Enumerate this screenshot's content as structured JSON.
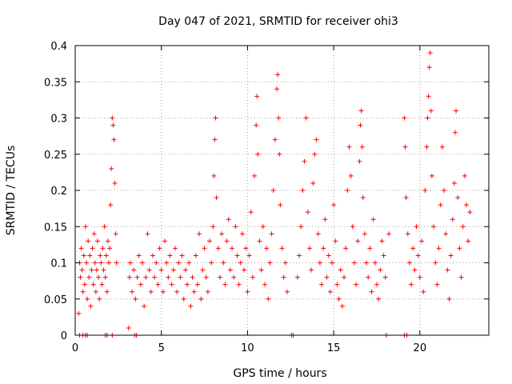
{
  "chart_data": {
    "type": "scatter",
    "title": "Day 047 of 2021, SRMTID for receiver ohi3",
    "xlabel": "GPS time / hours",
    "ylabel": "SRMTID / TECUs",
    "xlim": [
      0,
      24
    ],
    "ylim": [
      0,
      0.4
    ],
    "grid": true,
    "marker": "plus",
    "color": "#ff0000",
    "xticks": [
      0,
      5,
      10,
      15,
      20
    ],
    "yticks": [
      0,
      0.05,
      0.1,
      0.15,
      0.2,
      0.25,
      0.3,
      0.35,
      0.4
    ],
    "ytick_labels": [
      "0",
      "0.05",
      "0.1",
      "0.15",
      "0.2",
      "0.25",
      "0.3",
      "0.35",
      "0.4"
    ],
    "series": [
      {
        "name": "SRMTID",
        "points": [
          [
            0.2,
            0.03
          ],
          [
            0.25,
            0.1
          ],
          [
            0.3,
            0.08
          ],
          [
            0.35,
            0.12
          ],
          [
            0.4,
            0.09
          ],
          [
            0.45,
            0.06
          ],
          [
            0.5,
            0.11
          ],
          [
            0.55,
            0.07
          ],
          [
            0.6,
            0.15
          ],
          [
            0.65,
            0.1
          ],
          [
            0.7,
            0.05
          ],
          [
            0.75,
            0.13
          ],
          [
            0.8,
            0.08
          ],
          [
            0.85,
            0.11
          ],
          [
            0.9,
            0.04
          ],
          [
            0.95,
            0.09
          ],
          [
            1.0,
            0.12
          ],
          [
            1.05,
            0.07
          ],
          [
            1.1,
            0.14
          ],
          [
            1.15,
            0.1
          ],
          [
            1.2,
            0.06
          ],
          [
            1.25,
            0.09
          ],
          [
            1.3,
            0.13
          ],
          [
            1.35,
            0.08
          ],
          [
            1.4,
            0.05
          ],
          [
            1.45,
            0.11
          ],
          [
            1.5,
            0.1
          ],
          [
            1.55,
            0.07
          ],
          [
            1.6,
            0.12
          ],
          [
            1.65,
            0.09
          ],
          [
            1.7,
            0.15
          ],
          [
            1.75,
            0.08
          ],
          [
            1.8,
            0.11
          ],
          [
            1.85,
            0.06
          ],
          [
            1.9,
            0.13
          ],
          [
            1.95,
            0.1
          ],
          [
            2.0,
            0.12
          ],
          [
            2.05,
            0.18
          ],
          [
            2.1,
            0.23
          ],
          [
            2.15,
            0.3
          ],
          [
            2.2,
            0.29
          ],
          [
            2.25,
            0.27
          ],
          [
            2.3,
            0.21
          ],
          [
            2.35,
            0.14
          ],
          [
            2.4,
            0.1
          ],
          [
            3.1,
            0.01
          ],
          [
            3.15,
            0.08
          ],
          [
            3.2,
            0.1
          ],
          [
            3.3,
            0.06
          ],
          [
            3.4,
            0.09
          ],
          [
            3.5,
            0.05
          ],
          [
            3.6,
            0.08
          ],
          [
            3.7,
            0.11
          ],
          [
            3.8,
            0.07
          ],
          [
            3.9,
            0.1
          ],
          [
            4.0,
            0.04
          ],
          [
            4.1,
            0.08
          ],
          [
            4.2,
            0.14
          ],
          [
            4.3,
            0.09
          ],
          [
            4.4,
            0.06
          ],
          [
            4.5,
            0.11
          ],
          [
            4.6,
            0.08
          ],
          [
            4.7,
            0.1
          ],
          [
            4.8,
            0.07
          ],
          [
            4.9,
            0.12
          ],
          [
            5.0,
            0.09
          ],
          [
            5.1,
            0.06
          ],
          [
            5.2,
            0.13
          ],
          [
            5.3,
            0.1
          ],
          [
            5.4,
            0.08
          ],
          [
            5.5,
            0.11
          ],
          [
            5.6,
            0.07
          ],
          [
            5.7,
            0.09
          ],
          [
            5.8,
            0.12
          ],
          [
            5.9,
            0.06
          ],
          [
            6.0,
            0.1
          ],
          [
            6.1,
            0.08
          ],
          [
            6.2,
            0.11
          ],
          [
            6.3,
            0.05
          ],
          [
            6.4,
            0.09
          ],
          [
            6.5,
            0.07
          ],
          [
            6.6,
            0.1
          ],
          [
            6.7,
            0.04
          ],
          [
            6.8,
            0.08
          ],
          [
            6.9,
            0.06
          ],
          [
            7.0,
            0.11
          ],
          [
            7.1,
            0.07
          ],
          [
            7.2,
            0.14
          ],
          [
            7.3,
            0.05
          ],
          [
            7.4,
            0.09
          ],
          [
            7.5,
            0.12
          ],
          [
            7.6,
            0.08
          ],
          [
            7.7,
            0.06
          ],
          [
            7.8,
            0.13
          ],
          [
            7.9,
            0.1
          ],
          [
            8.0,
            0.15
          ],
          [
            8.05,
            0.22
          ],
          [
            8.1,
            0.27
          ],
          [
            8.15,
            0.3
          ],
          [
            8.2,
            0.19
          ],
          [
            8.3,
            0.12
          ],
          [
            8.4,
            0.08
          ],
          [
            8.5,
            0.14
          ],
          [
            8.6,
            0.1
          ],
          [
            8.7,
            0.07
          ],
          [
            8.8,
            0.13
          ],
          [
            8.9,
            0.16
          ],
          [
            9.0,
            0.09
          ],
          [
            9.1,
            0.12
          ],
          [
            9.2,
            0.08
          ],
          [
            9.3,
            0.15
          ],
          [
            9.4,
            0.11
          ],
          [
            9.5,
            0.07
          ],
          [
            9.6,
            0.1
          ],
          [
            9.7,
            0.14
          ],
          [
            9.8,
            0.09
          ],
          [
            9.9,
            0.12
          ],
          [
            10.0,
            0.06
          ],
          [
            10.1,
            0.11
          ],
          [
            10.2,
            0.17
          ],
          [
            10.3,
            0.08
          ],
          [
            10.4,
            0.22
          ],
          [
            10.5,
            0.29
          ],
          [
            10.55,
            0.33
          ],
          [
            10.6,
            0.25
          ],
          [
            10.7,
            0.13
          ],
          [
            10.8,
            0.09
          ],
          [
            10.9,
            0.15
          ],
          [
            11.0,
            0.07
          ],
          [
            11.1,
            0.12
          ],
          [
            11.2,
            0.05
          ],
          [
            11.3,
            0.1
          ],
          [
            11.4,
            0.14
          ],
          [
            11.5,
            0.2
          ],
          [
            11.6,
            0.27
          ],
          [
            11.7,
            0.34
          ],
          [
            11.75,
            0.36
          ],
          [
            11.8,
            0.3
          ],
          [
            11.85,
            0.25
          ],
          [
            11.9,
            0.18
          ],
          [
            12.0,
            0.12
          ],
          [
            12.1,
            0.08
          ],
          [
            12.2,
            0.1
          ],
          [
            12.3,
            0.06
          ],
          [
            12.9,
            0.08
          ],
          [
            13.0,
            0.11
          ],
          [
            13.1,
            0.15
          ],
          [
            13.2,
            0.2
          ],
          [
            13.3,
            0.24
          ],
          [
            13.4,
            0.3
          ],
          [
            13.5,
            0.17
          ],
          [
            13.6,
            0.12
          ],
          [
            13.7,
            0.09
          ],
          [
            13.8,
            0.21
          ],
          [
            13.9,
            0.25
          ],
          [
            14.0,
            0.27
          ],
          [
            14.1,
            0.14
          ],
          [
            14.2,
            0.1
          ],
          [
            14.3,
            0.07
          ],
          [
            14.4,
            0.12
          ],
          [
            14.5,
            0.16
          ],
          [
            14.6,
            0.08
          ],
          [
            14.7,
            0.11
          ],
          [
            14.8,
            0.06
          ],
          [
            14.9,
            0.1
          ],
          [
            15.0,
            0.18
          ],
          [
            15.1,
            0.13
          ],
          [
            15.2,
            0.07
          ],
          [
            15.3,
            0.05
          ],
          [
            15.4,
            0.09
          ],
          [
            15.5,
            0.04
          ],
          [
            15.6,
            0.08
          ],
          [
            15.7,
            0.12
          ],
          [
            15.8,
            0.2
          ],
          [
            15.9,
            0.26
          ],
          [
            16.0,
            0.22
          ],
          [
            16.1,
            0.15
          ],
          [
            16.2,
            0.1
          ],
          [
            16.3,
            0.07
          ],
          [
            16.4,
            0.13
          ],
          [
            16.5,
            0.24
          ],
          [
            16.55,
            0.29
          ],
          [
            16.6,
            0.31
          ],
          [
            16.65,
            0.26
          ],
          [
            16.7,
            0.19
          ],
          [
            16.8,
            0.14
          ],
          [
            16.9,
            0.1
          ],
          [
            17.0,
            0.08
          ],
          [
            17.1,
            0.12
          ],
          [
            17.2,
            0.06
          ],
          [
            17.3,
            0.16
          ],
          [
            17.4,
            0.1
          ],
          [
            17.5,
            0.07
          ],
          [
            17.6,
            0.05
          ],
          [
            17.7,
            0.09
          ],
          [
            17.8,
            0.13
          ],
          [
            17.9,
            0.11
          ],
          [
            18.0,
            0.08
          ],
          [
            18.2,
            0.14
          ],
          [
            19.1,
            0.3
          ],
          [
            19.15,
            0.26
          ],
          [
            19.2,
            0.19
          ],
          [
            19.3,
            0.14
          ],
          [
            19.4,
            0.1
          ],
          [
            19.5,
            0.07
          ],
          [
            19.6,
            0.12
          ],
          [
            19.7,
            0.09
          ],
          [
            19.8,
            0.15
          ],
          [
            19.9,
            0.11
          ],
          [
            20.0,
            0.08
          ],
          [
            20.1,
            0.13
          ],
          [
            20.2,
            0.06
          ],
          [
            20.3,
            0.2
          ],
          [
            20.4,
            0.26
          ],
          [
            20.45,
            0.3
          ],
          [
            20.5,
            0.33
          ],
          [
            20.55,
            0.37
          ],
          [
            20.6,
            0.39
          ],
          [
            20.65,
            0.31
          ],
          [
            20.7,
            0.22
          ],
          [
            20.8,
            0.15
          ],
          [
            20.9,
            0.1
          ],
          [
            21.0,
            0.07
          ],
          [
            21.1,
            0.12
          ],
          [
            21.2,
            0.18
          ],
          [
            21.3,
            0.26
          ],
          [
            21.4,
            0.2
          ],
          [
            21.5,
            0.14
          ],
          [
            21.6,
            0.09
          ],
          [
            21.7,
            0.05
          ],
          [
            21.8,
            0.11
          ],
          [
            21.9,
            0.16
          ],
          [
            22.0,
            0.21
          ],
          [
            22.05,
            0.28
          ],
          [
            22.1,
            0.31
          ],
          [
            22.2,
            0.19
          ],
          [
            22.3,
            0.12
          ],
          [
            22.4,
            0.08
          ],
          [
            22.5,
            0.15
          ],
          [
            22.6,
            0.22
          ],
          [
            22.7,
            0.18
          ],
          [
            22.8,
            0.13
          ],
          [
            22.9,
            0.17
          ]
        ]
      }
    ],
    "zero_points": [
      0.25,
      0.45,
      0.6,
      0.7,
      1.75,
      1.85,
      2.15,
      3.45,
      3.55,
      12.55,
      12.65,
      18.05,
      19.1,
      19.25
    ]
  }
}
